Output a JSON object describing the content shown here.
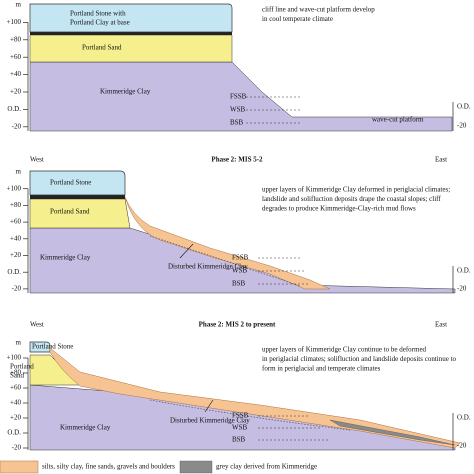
{
  "panels": [
    {
      "axis_labels": [
        "m",
        "+100",
        "+80",
        "+60",
        "+40",
        "+20",
        "O.D.",
        "-20"
      ],
      "right_labels": [
        "O.D.",
        "-20"
      ],
      "layers": {
        "stone": [
          "Portland Stone with",
          "Portland Clay at base"
        ],
        "sand": "Portland Sand",
        "clay": "Kimmeridge Clay"
      },
      "boreholes": [
        "FSSB",
        "WSB",
        "BSB"
      ],
      "platform": "wave-cut platform",
      "note": [
        "cliff line and wave-cut platform develop",
        "in cool temperate climate"
      ]
    },
    {
      "west": "West",
      "title": "Phase 2: MIS 5-2",
      "east": "East",
      "axis_labels": [
        "m",
        "+100",
        "+80",
        "+60",
        "+40",
        "+20",
        "O.D.",
        "-20"
      ],
      "right_labels": [
        "O.D.",
        "-20"
      ],
      "layers": {
        "stone": [
          "Portland Stone"
        ],
        "sand": "Portland Sand",
        "clay": "Kimmeridge Clay"
      },
      "disturbed": "Disturbed Kimmeridge Clay",
      "boreholes": [
        "FSSB",
        "WSB",
        "BSB"
      ],
      "note": [
        "upper layers of Kimmeridge Clay deformed in periglacial climates;",
        "landslide and solifluction deposits drape the coastal slopes; cliff",
        "degrades to produce  Kimmeridge-Clay-rich mud flows"
      ]
    },
    {
      "west": "West",
      "title": "Phase 2: MIS 2 to present",
      "east": "East",
      "axis_labels": [
        "m",
        "+100",
        "+80",
        "+60",
        "+40",
        "+20",
        "O.D.",
        "-20"
      ],
      "right_labels": [
        "O.D.",
        "-20"
      ],
      "layers": {
        "stone": [
          "Portland Stone"
        ],
        "sand": [
          "Portland",
          "Sand"
        ],
        "clay": "Kimmeridge Clay"
      },
      "disturbed": "Disturbed Kimmeridge Clay",
      "boreholes": [
        "FSSB",
        "WSB",
        "BSB"
      ],
      "note": [
        "upper layers of Kimmeridge Clay continue to be deformed",
        "in periglacial climates; solifluction and landslide deposits continue to",
        "form in periglacial and temperate climates"
      ]
    }
  ],
  "legend": [
    "silts, silty clay, fine sands, gravels and boulders",
    "grey clay derived from Kimmeridge"
  ]
}
